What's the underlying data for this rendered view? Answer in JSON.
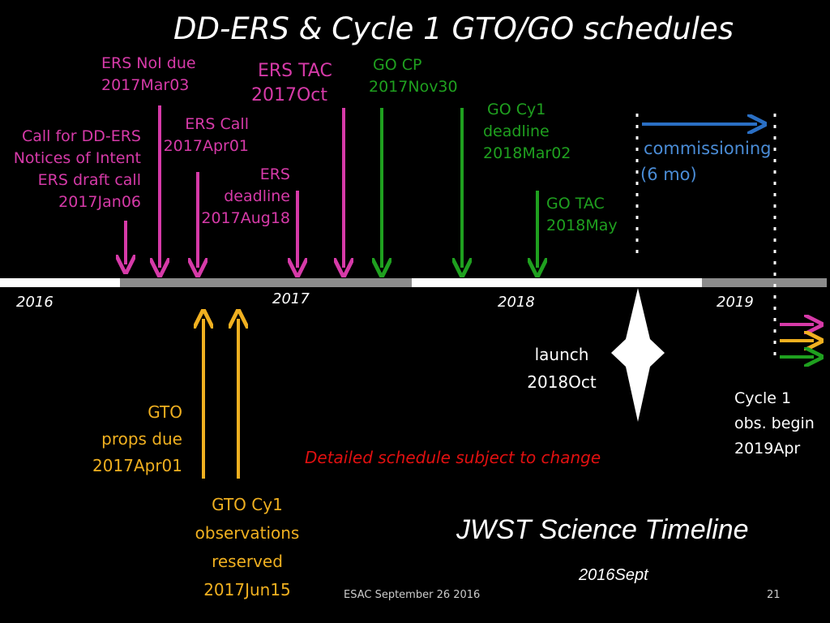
{
  "title": "DD-ERS & Cycle 1 GTO/GO schedules",
  "colors": {
    "ers": "#d63aa8",
    "go": "#1fa01f",
    "gto": "#f0b020",
    "commissioning": "#2a6fc4",
    "note": "#e01010"
  },
  "years": [
    "2016",
    "2017",
    "2018",
    "2019"
  ],
  "events": {
    "call_ddears": [
      "Call for DD-ERS",
      "Notices of Intent",
      "ERS draft call",
      "2017Jan06"
    ],
    "ers_noi": [
      "ERS NoI due",
      "2017Mar03"
    ],
    "ers_call": [
      "ERS Call",
      "2017Apr01"
    ],
    "ers_deadline": [
      "ERS",
      "deadline",
      "2017Aug18"
    ],
    "ers_tac": [
      "ERS TAC",
      "2017Oct"
    ],
    "go_cp": [
      "GO CP",
      "2017Nov30"
    ],
    "go_cy1": [
      "GO Cy1",
      "deadline",
      "2018Mar02"
    ],
    "go_tac": [
      "GO TAC",
      "2018May"
    ],
    "commissioning": [
      "commissioning",
      "(6 mo)"
    ],
    "gto_props": [
      "GTO",
      "props due",
      "2017Apr01"
    ],
    "gto_cy1": [
      "GTO Cy1",
      "observations",
      "reserved",
      "2017Jun15"
    ],
    "launch": [
      "launch",
      "2018Oct"
    ],
    "cycle1": [
      "Cycle 1",
      "obs. begin",
      "2019Apr"
    ]
  },
  "note": "Detailed schedule subject to change",
  "timeline_title": "JWST Science Timeline",
  "timeline_date": "2016Sept",
  "footer": "ESAC September 26 2016",
  "slide_number": "21"
}
